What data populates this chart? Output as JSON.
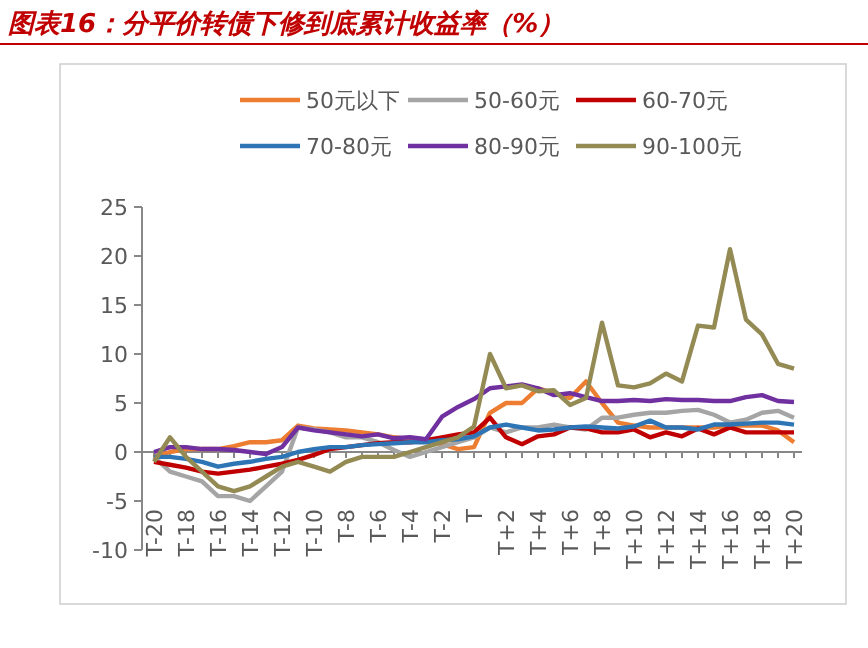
{
  "chart_data": {
    "type": "line",
    "title": "图表16：分平价转债下修到底累计收益率（%）",
    "categories": [
      "T-20",
      null,
      "T-18",
      null,
      "T-16",
      null,
      "T-14",
      null,
      "T-12",
      null,
      "T-10",
      null,
      "T-8",
      null,
      "T-6",
      null,
      "T-4",
      null,
      "T-2",
      null,
      "T",
      null,
      "T+2",
      null,
      "T+4",
      null,
      "T+6",
      null,
      "T+8",
      null,
      "T+10",
      null,
      "T+12",
      null,
      "T+14",
      null,
      "T+16",
      null,
      "T+18",
      null,
      "T+20"
    ],
    "series": [
      {
        "name": "50元以下",
        "color": "#ed7d31",
        "values": [
          -0.5,
          0,
          0.3,
          0.3,
          0.3,
          0.6,
          1,
          1,
          1.2,
          2.7,
          2.4,
          2.3,
          2.2,
          2,
          1.8,
          1.5,
          1.3,
          1.2,
          0.8,
          0.3,
          0.5,
          4,
          5,
          5,
          6.5,
          6,
          5.5,
          7.2,
          5,
          3,
          2.7,
          2.5,
          2.5,
          2.5,
          2.5,
          2.5,
          2.7,
          2.7,
          2.7,
          2.2,
          1
        ]
      },
      {
        "name": "50-60元",
        "color": "#a5a5a5",
        "values": [
          -0.5,
          -2,
          -2.5,
          -3,
          -4.5,
          -4.5,
          -5,
          -3.5,
          -2,
          2.5,
          2.3,
          2,
          1.5,
          1.5,
          1,
          0.2,
          -0.5,
          0,
          0.5,
          1,
          1.5,
          2.5,
          2,
          2.5,
          2.5,
          2.8,
          2.5,
          2.3,
          3.5,
          3.5,
          3.8,
          4,
          4,
          4.2,
          4.3,
          3.8,
          3,
          3.3,
          4,
          4.2,
          3.5
        ]
      },
      {
        "name": "60-70元",
        "color": "#c00000",
        "values": [
          -1,
          -1.3,
          -1.6,
          -2,
          -2.2,
          -2,
          -1.8,
          -1.5,
          -1.2,
          -0.8,
          -0.3,
          0.3,
          0.5,
          0.7,
          0.9,
          1,
          1,
          1.2,
          1.5,
          1.8,
          2,
          3.5,
          1.5,
          0.8,
          1.6,
          1.8,
          2.5,
          2.4,
          2,
          2,
          2.3,
          1.5,
          2,
          1.6,
          2.4,
          1.8,
          2.5,
          2,
          2,
          2,
          2
        ]
      },
      {
        "name": "70-80元",
        "color": "#2e75b6",
        "values": [
          -0.5,
          -0.5,
          -0.7,
          -1,
          -1.5,
          -1.2,
          -1,
          -0.7,
          -0.5,
          0,
          0.3,
          0.5,
          0.5,
          0.7,
          0.8,
          0.9,
          1,
          1,
          1.2,
          1.3,
          1.6,
          2.5,
          2.8,
          2.5,
          2.2,
          2.3,
          2.5,
          2.6,
          2.5,
          2.4,
          2.6,
          3.2,
          2.5,
          2.5,
          2.3,
          2.8,
          2.8,
          2.9,
          3,
          3,
          2.8
        ]
      },
      {
        "name": "80-90元",
        "color": "#7030a0",
        "values": [
          0,
          0.5,
          0.5,
          0.3,
          0.3,
          0.2,
          0,
          -0.2,
          0.5,
          2.5,
          2.2,
          2,
          1.8,
          1.6,
          1.8,
          1.4,
          1.5,
          1.3,
          3.6,
          4.6,
          5.4,
          6.5,
          6.7,
          6.9,
          6.5,
          5.8,
          6,
          5.6,
          5.2,
          5.2,
          5.3,
          5.2,
          5.4,
          5.3,
          5.3,
          5.2,
          5.2,
          5.6,
          5.8,
          5.2,
          5.1
        ]
      },
      {
        "name": "90-100元",
        "color": "#948a54",
        "values": [
          -1,
          1.5,
          -0.5,
          -2,
          -3.5,
          -4,
          -3.5,
          -2.5,
          -1.5,
          -1,
          -1.5,
          -2,
          -1,
          -0.5,
          -0.5,
          -0.5,
          0,
          0.5,
          1,
          1.5,
          2.6,
          10,
          6.5,
          6.8,
          6.2,
          6.3,
          4.8,
          5.5,
          13.2,
          6.8,
          6.6,
          7,
          8,
          7.2,
          12.9,
          12.7,
          20.7,
          13.5,
          12,
          9,
          8.5
        ]
      }
    ],
    "ylim": [
      -10,
      25
    ],
    "yticks": [
      -10,
      -5,
      0,
      5,
      10,
      15,
      20,
      25
    ],
    "grid": false,
    "legend": "top",
    "marker": "none",
    "line_style": "solid"
  }
}
